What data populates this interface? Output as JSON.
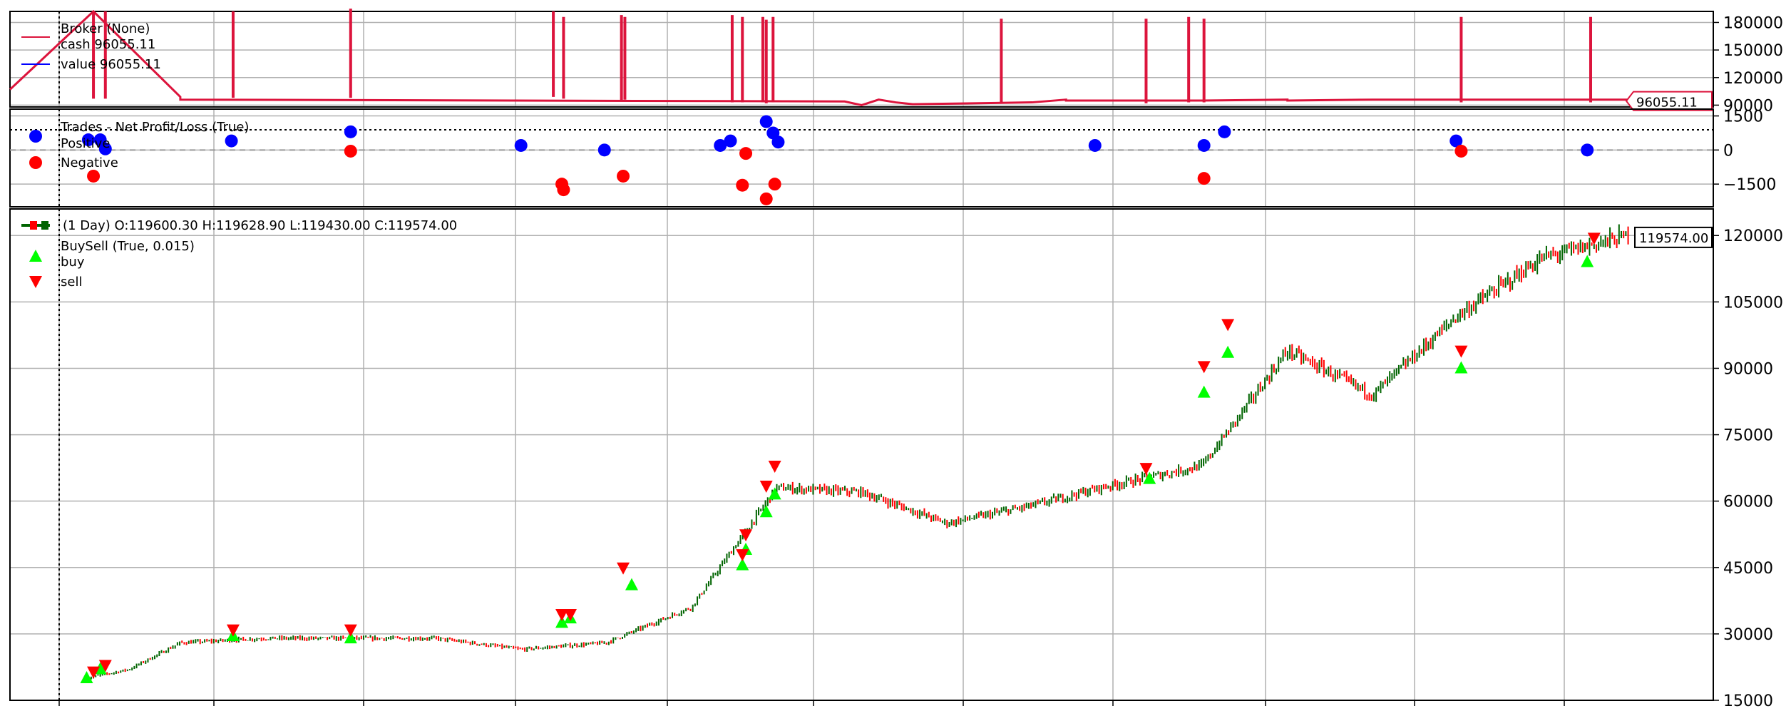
{
  "chart_data": [
    {
      "panel": "broker",
      "type": "line",
      "legend": {
        "title": "Broker (None)",
        "entries": [
          {
            "label": "cash 96055.11",
            "color": "#dc143c"
          },
          {
            "label": "value 96055.11",
            "color": "#0000ff"
          }
        ],
        "placement": "top-left"
      },
      "y_ticks": [
        "180000",
        "150000",
        "120000",
        "90000"
      ],
      "ylim": [
        88000,
        192000
      ],
      "last_value_label": "96055.11",
      "grid": true,
      "series": [
        {
          "color": "#dc143c",
          "x": [
            0,
            0.049,
            0.1,
            0.1,
            0.49,
            0.5,
            0.51,
            0.52,
            0.53,
            0.6,
            0.62,
            0.62,
            0.7,
            0.75,
            0.75,
            0.8,
            0.85,
            0.95,
            0.95
          ],
          "y": [
            107000,
            192000,
            99000,
            96000,
            94000,
            90000,
            96000,
            93000,
            91000,
            93000,
            96000,
            95000,
            95000,
            96000,
            95000,
            96000,
            96000,
            96000,
            96055
          ]
        }
      ],
      "spikes": [
        {
          "x": 0.049,
          "y": 192000
        },
        {
          "x": 0.056,
          "y": 192000
        },
        {
          "x": 0.131,
          "y": 192000
        },
        {
          "x": 0.2,
          "y": 195000
        },
        {
          "x": 0.319,
          "y": 192000
        },
        {
          "x": 0.325,
          "y": 186000
        },
        {
          "x": 0.359,
          "y": 188000
        },
        {
          "x": 0.361,
          "y": 186000
        },
        {
          "x": 0.424,
          "y": 188000
        },
        {
          "x": 0.43,
          "y": 186000
        },
        {
          "x": 0.442,
          "y": 186000
        },
        {
          "x": 0.444,
          "y": 183000
        },
        {
          "x": 0.448,
          "y": 186000
        },
        {
          "x": 0.582,
          "y": 184000
        },
        {
          "x": 0.667,
          "y": 184000
        },
        {
          "x": 0.692,
          "y": 186000
        },
        {
          "x": 0.701,
          "y": 184000
        },
        {
          "x": 0.852,
          "y": 186000
        },
        {
          "x": 0.928,
          "y": 186000
        }
      ],
      "spike_base": [
        97000,
        97000,
        98000,
        98000,
        99000,
        97000,
        95000,
        96000,
        93000,
        93000,
        93000,
        92000,
        93000,
        92000,
        92000,
        93000,
        93000,
        93000,
        93000
      ]
    },
    {
      "panel": "trades",
      "type": "scatter",
      "legend": {
        "title": "Trades - Net Profit/Loss (True)",
        "entries": [
          {
            "label": "Positive",
            "color": "#0000ff"
          },
          {
            "label": "Negative",
            "color": "#ff0000"
          }
        ],
        "placement": "top-left"
      },
      "y_ticks": [
        "1500",
        "0",
        "−1500"
      ],
      "ylim": [
        -2500,
        1800
      ],
      "grid": true,
      "positive": {
        "x": [
          0.046,
          0.053,
          0.056,
          0.13,
          0.2,
          0.3,
          0.349,
          0.417,
          0.423,
          0.444,
          0.448,
          0.451,
          0.637,
          0.701,
          0.713,
          0.849,
          0.926
        ],
        "y": [
          450,
          450,
          50,
          400,
          800,
          200,
          0,
          200,
          400,
          1250,
          750,
          350,
          200,
          200,
          800,
          400,
          0
        ]
      },
      "negative": {
        "x": [
          0.049,
          0.2,
          0.324,
          0.325,
          0.36,
          0.43,
          0.432,
          0.444,
          0.449,
          0.701,
          0.852
        ],
        "y": [
          -1150,
          -50,
          -1500,
          -1750,
          -1150,
          -1550,
          -150,
          -2150,
          -1500,
          -1250,
          -50
        ]
      }
    },
    {
      "panel": "price",
      "type": "candlestick",
      "legend": {
        "title": "(1 Day) O:119600.30 H:119628.90 L:119430.00 C:119574.00",
        "entries": [
          {
            "label": "BuySell (True, 0.015)",
            "color": ""
          },
          {
            "label": "buy",
            "color": "#00ff00"
          },
          {
            "label": "sell",
            "color": "#ff0000"
          }
        ],
        "placement": "top-left"
      },
      "y_ticks": [
        "120000",
        "105000",
        "90000",
        "75000",
        "60000",
        "45000",
        "30000",
        "15000"
      ],
      "ylim": [
        15000,
        126000
      ],
      "last_value_label": "119574.00",
      "grid": true,
      "close": {
        "x": [
          0.045,
          0.07,
          0.1,
          0.15,
          0.2,
          0.25,
          0.3,
          0.35,
          0.4,
          0.45,
          0.5,
          0.55,
          0.6,
          0.64,
          0.7,
          0.75,
          0.8,
          0.85,
          0.9,
          0.95
        ],
        "y": [
          20000,
          22000,
          28000,
          29000,
          29000,
          29000,
          26500,
          28000,
          36000,
          63000,
          62000,
          55000,
          59000,
          63000,
          68000,
          94000,
          84000,
          102000,
          115000,
          120000
        ]
      },
      "buy": {
        "x": [
          0.045,
          0.053,
          0.131,
          0.2,
          0.324,
          0.329,
          0.365,
          0.43,
          0.432,
          0.444,
          0.449,
          0.669,
          0.701,
          0.715,
          0.852,
          0.926
        ],
        "y": [
          20000,
          22000,
          29500,
          29000,
          32500,
          33500,
          41000,
          45500,
          49000,
          57500,
          61500,
          65000,
          84500,
          93500,
          90000,
          114000
        ]
      },
      "sell": {
        "x": [
          0.049,
          0.056,
          0.131,
          0.2,
          0.324,
          0.329,
          0.36,
          0.43,
          0.432,
          0.444,
          0.449,
          0.667,
          0.701,
          0.715,
          0.852,
          0.93
        ],
        "y": [
          21500,
          23000,
          31000,
          31000,
          34500,
          34500,
          45000,
          48000,
          52500,
          63500,
          68000,
          67500,
          90500,
          100000,
          94000,
          119500
        ]
      }
    }
  ]
}
